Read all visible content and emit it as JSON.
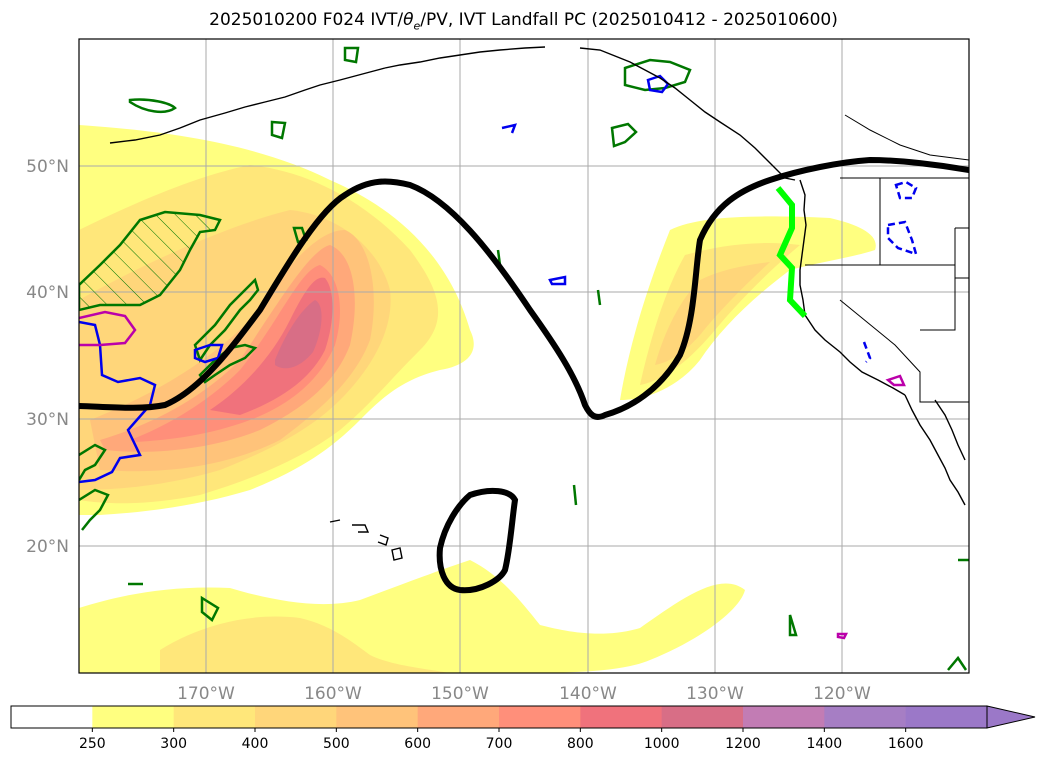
{
  "title": {
    "prefix": "2025010200 F024 IVT/",
    "theta_symbol": "θ",
    "theta_sub": "e",
    "suffix": "/PV, IVT Landfall PC (2025010412 - 2025010600)"
  },
  "map": {
    "projection": "PlateCarree",
    "lon_range": [
      -180,
      -110
    ],
    "lat_range": [
      10,
      60
    ],
    "lat_ticks": [
      "50°N",
      "40°N",
      "30°N",
      "20°N"
    ],
    "lon_ticks": [
      "170°W",
      "160°W",
      "150°W",
      "140°W",
      "130°W",
      "120°W"
    ],
    "gridlines": true,
    "colors": {
      "coastline": "#000000",
      "pv_contour": "#000000",
      "landfall_line": "#00ff00",
      "green_contour": "#007700",
      "blue_contour": "#0000ee",
      "magenta_contour": "#bb00aa"
    }
  },
  "colorbar": {
    "levels": [
      "250",
      "300",
      "400",
      "500",
      "600",
      "700",
      "800",
      "1000",
      "1200",
      "1400",
      "1600"
    ],
    "colors": [
      "#ffffff",
      "#ffff80",
      "#ffe77a",
      "#ffd67a",
      "#ffc37a",
      "#ffa87a",
      "#ff8f7a",
      "#f0727c",
      "#d86e86",
      "#c27cb4",
      "#a67ec4",
      "#9b78c8"
    ],
    "extend": "max"
  }
}
